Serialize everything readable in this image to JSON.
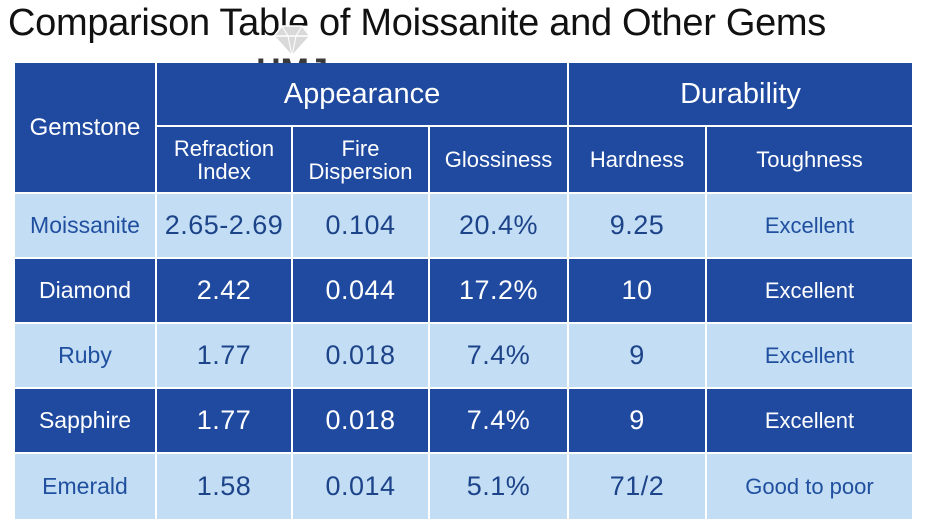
{
  "title": "Comparison Table of Moissanite and Other Gems",
  "logo": {
    "text": "HMJ",
    "icon": "diamond-icon"
  },
  "colors": {
    "header_blue": "#1f4aa0",
    "row_dark": "#1f4aa0",
    "row_light": "#c3ddf5",
    "light_text": "#1a3f8c"
  },
  "table": {
    "header": {
      "gemstone": "Gemstone",
      "appearance": "Appearance",
      "durability": "Durability",
      "refraction_line1": "Refraction",
      "refraction_line2": "Index",
      "fire_line1": "Fire",
      "fire_line2": "Dispersion",
      "glossiness": "Glossiness",
      "hardness": "Hardness",
      "toughness": "Toughness"
    },
    "rows": [
      {
        "gemstone": "Moissanite",
        "refraction": "2.65-2.69",
        "dispersion": "0.104",
        "glossiness": "20.4%",
        "hardness": "9.25",
        "toughness": "Excellent"
      },
      {
        "gemstone": "Diamond",
        "refraction": "2.42",
        "dispersion": "0.044",
        "glossiness": "17.2%",
        "hardness": "10",
        "toughness": "Excellent"
      },
      {
        "gemstone": "Ruby",
        "refraction": "1.77",
        "dispersion": "0.018",
        "glossiness": "7.4%",
        "hardness": "9",
        "toughness": "Excellent"
      },
      {
        "gemstone": "Sapphire",
        "refraction": "1.77",
        "dispersion": "0.018",
        "glossiness": "7.4%",
        "hardness": "9",
        "toughness": "Excellent"
      },
      {
        "gemstone": "Emerald",
        "refraction": "1.58",
        "dispersion": "0.014",
        "glossiness": "5.1%",
        "hardness": "71/2",
        "toughness": "Good to poor"
      }
    ]
  }
}
